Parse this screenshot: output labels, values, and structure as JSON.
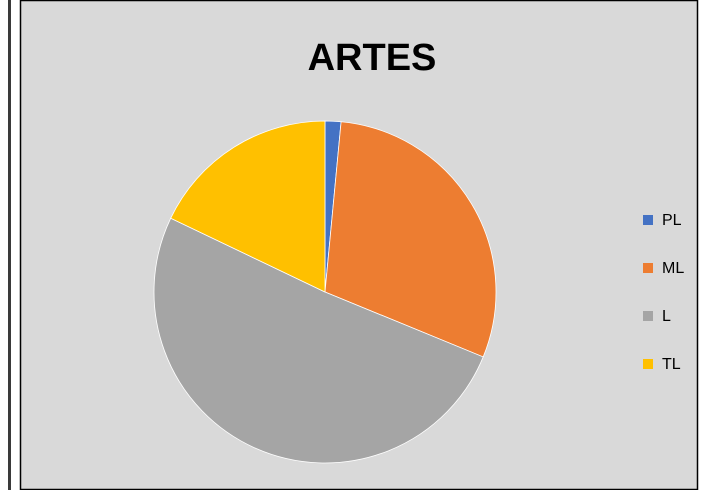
{
  "chart_data": {
    "type": "pie",
    "title": "ARTES",
    "categories": [
      "PL",
      "ML",
      "L",
      "TL"
    ],
    "values": [
      1.5,
      29.7,
      50.9,
      17.9
    ],
    "colors": [
      "#4472c4",
      "#ed7d31",
      "#a5a5a5",
      "#ffc000"
    ],
    "legend": "right"
  }
}
